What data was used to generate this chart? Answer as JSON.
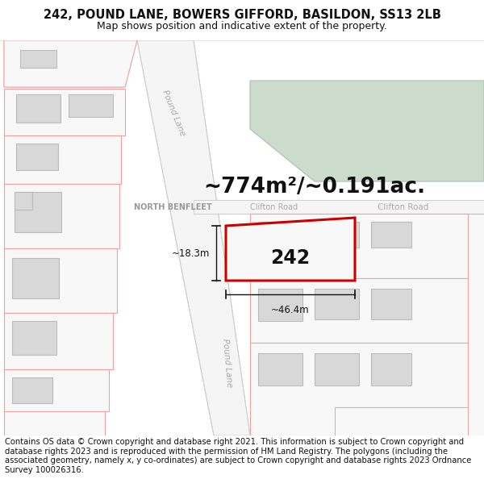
{
  "title": "242, POUND LANE, BOWERS GIFFORD, BASILDON, SS13 2LB",
  "subtitle": "Map shows position and indicative extent of the property.",
  "area_text": "~774m²/~0.191ac.",
  "label_242": "242",
  "dim_width": "~46.4m",
  "dim_height": "~18.3m",
  "road_label_pound_lane_top": "Pound Lane",
  "road_label_pound_lane_mid": "Pound Lane",
  "road_label_clifton_road_right": "Clifton Road",
  "road_label_north_benfleet": "NORTH BENFLEET",
  "road_label_clifton_small": "Clifton Road",
  "footer": "Contains OS data © Crown copyright and database right 2021. This information is subject to Crown copyright and database rights 2023 and is reproduced with the permission of HM Land Registry. The polygons (including the associated geometry, namely x, y co-ordinates) are subject to Crown copyright and database rights 2023 Ordnance Survey 100026316.",
  "bg_color": "#ffffff",
  "map_bg": "#ffffff",
  "road_stroke": "#f0a0a0",
  "building_fill": "#d8d8d8",
  "building_stroke": "#bbbbbb",
  "highlight_stroke": "#cc0000",
  "green_fill": "#ccdccc",
  "dim_line_color": "#111111",
  "text_color": "#111111",
  "title_fontsize": 10.5,
  "subtitle_fontsize": 9,
  "area_fontsize": 19,
  "label_fontsize": 17,
  "dim_fontsize": 8.5,
  "footer_fontsize": 7.2
}
